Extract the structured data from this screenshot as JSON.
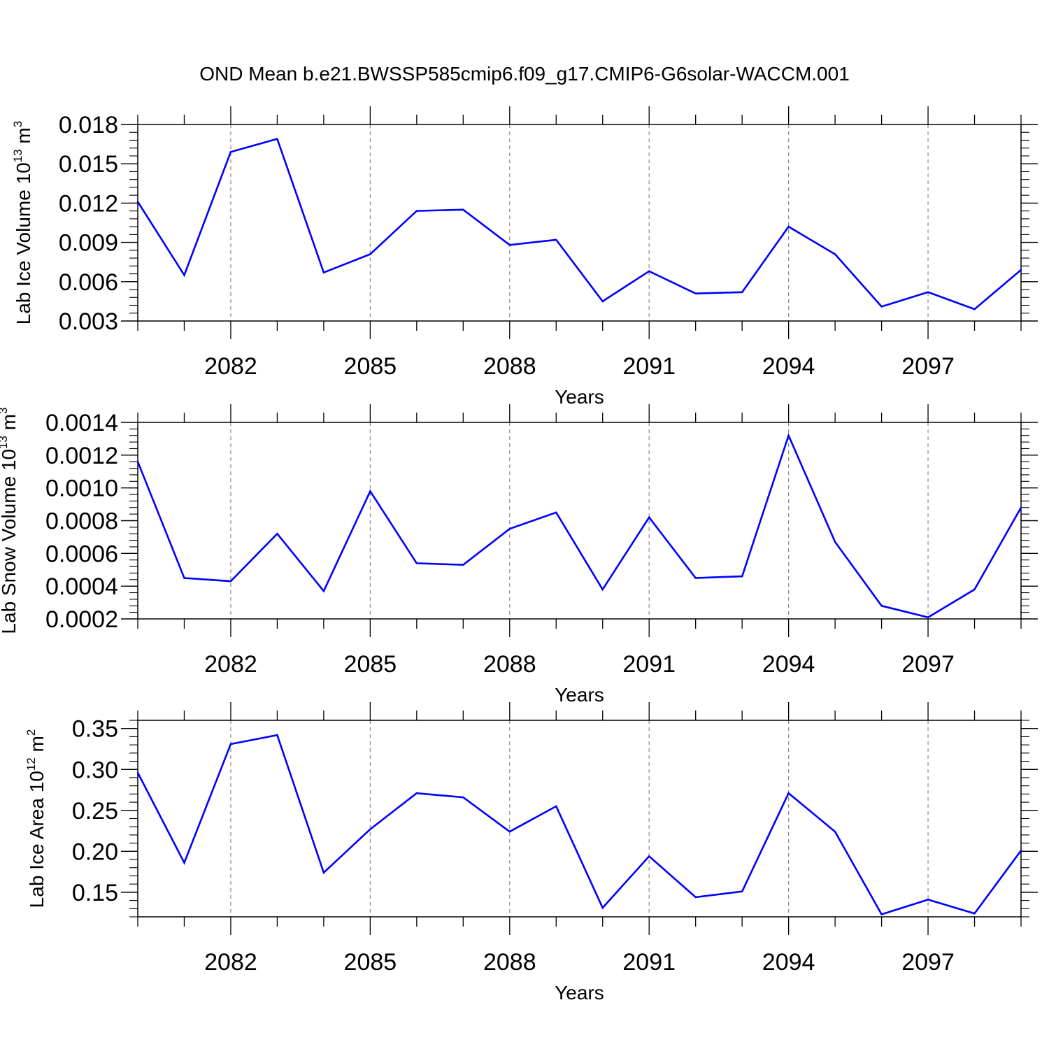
{
  "title": "OND Mean b.e21.BWSSP585cmip6.f09_g17.CMIP6-G6solar-WACCM.001",
  "chart_data": [
    {
      "type": "line",
      "xlabel": "Years",
      "ylabel": {
        "prefix": "Lab Ice Volume 10",
        "exp": "13",
        "unit": " m",
        "unit_exp": "3"
      },
      "x": [
        2080,
        2081,
        2082,
        2083,
        2084,
        2085,
        2086,
        2087,
        2088,
        2089,
        2090,
        2091,
        2092,
        2093,
        2094,
        2095,
        2096,
        2097,
        2098,
        2099
      ],
      "values": [
        0.0121,
        0.0065,
        0.0159,
        0.0169,
        0.0067,
        0.0081,
        0.0114,
        0.0115,
        0.0088,
        0.0092,
        0.0045,
        0.0068,
        0.0051,
        0.0052,
        0.0102,
        0.0081,
        0.0041,
        0.0052,
        0.0039,
        0.0069
      ],
      "xlim": [
        2080,
        2099
      ],
      "ylim": [
        0.003,
        0.018
      ],
      "yticks": [
        0.003,
        0.006,
        0.009,
        0.012,
        0.015,
        0.018
      ],
      "ytick_labels": [
        "0.003",
        "0.006",
        "0.009",
        "0.012",
        "0.015",
        "0.018"
      ],
      "yminor_step": 0.0006,
      "xticks": [
        2082,
        2085,
        2088,
        2091,
        2094,
        2097
      ],
      "xtick_labels": [
        "2082",
        "2085",
        "2088",
        "2091",
        "2094",
        "2097"
      ],
      "grid": "x-dashed",
      "color": "#0000ff"
    },
    {
      "type": "line",
      "xlabel": "Years",
      "ylabel": {
        "prefix": "Lab Snow Volume 10",
        "exp": "13",
        "unit": " m",
        "unit_exp": "3"
      },
      "x": [
        2080,
        2081,
        2082,
        2083,
        2084,
        2085,
        2086,
        2087,
        2088,
        2089,
        2090,
        2091,
        2092,
        2093,
        2094,
        2095,
        2096,
        2097,
        2098,
        2099
      ],
      "values": [
        0.00116,
        0.00045,
        0.00043,
        0.00072,
        0.00037,
        0.00098,
        0.00054,
        0.00053,
        0.00075,
        0.00085,
        0.00038,
        0.00082,
        0.00045,
        0.00046,
        0.00132,
        0.00067,
        0.00028,
        0.00021,
        0.00038,
        0.00088
      ],
      "xlim": [
        2080,
        2099
      ],
      "ylim": [
        0.0002,
        0.0014
      ],
      "yticks": [
        0.0002,
        0.0004,
        0.0006,
        0.0008,
        0.001,
        0.0012,
        0.0014
      ],
      "ytick_labels": [
        "0.0002",
        "0.0004",
        "0.0006",
        "0.0008",
        "0.0010",
        "0.0012",
        "0.0014"
      ],
      "yminor_step": 4e-05,
      "xticks": [
        2082,
        2085,
        2088,
        2091,
        2094,
        2097
      ],
      "xtick_labels": [
        "2082",
        "2085",
        "2088",
        "2091",
        "2094",
        "2097"
      ],
      "grid": "x-dashed",
      "color": "#0000ff"
    },
    {
      "type": "line",
      "xlabel": "Years",
      "ylabel": {
        "prefix": "Lab Ice Area 10",
        "exp": "12",
        "unit": " m",
        "unit_exp": "2"
      },
      "x": [
        2080,
        2081,
        2082,
        2083,
        2084,
        2085,
        2086,
        2087,
        2088,
        2089,
        2090,
        2091,
        2092,
        2093,
        2094,
        2095,
        2096,
        2097,
        2098,
        2099
      ],
      "values": [
        0.296,
        0.186,
        0.331,
        0.342,
        0.174,
        0.227,
        0.271,
        0.266,
        0.224,
        0.255,
        0.131,
        0.194,
        0.144,
        0.151,
        0.271,
        0.224,
        0.123,
        0.141,
        0.124,
        0.201
      ],
      "xlim": [
        2080,
        2099
      ],
      "ylim": [
        0.12,
        0.36
      ],
      "yticks": [
        0.15,
        0.2,
        0.25,
        0.3,
        0.35
      ],
      "ytick_labels": [
        "0.15",
        "0.20",
        "0.25",
        "0.30",
        "0.35"
      ],
      "yminor_step": 0.01,
      "xticks": [
        2082,
        2085,
        2088,
        2091,
        2094,
        2097
      ],
      "xtick_labels": [
        "2082",
        "2085",
        "2088",
        "2091",
        "2094",
        "2097"
      ],
      "grid": "x-dashed",
      "color": "#0000ff"
    }
  ]
}
